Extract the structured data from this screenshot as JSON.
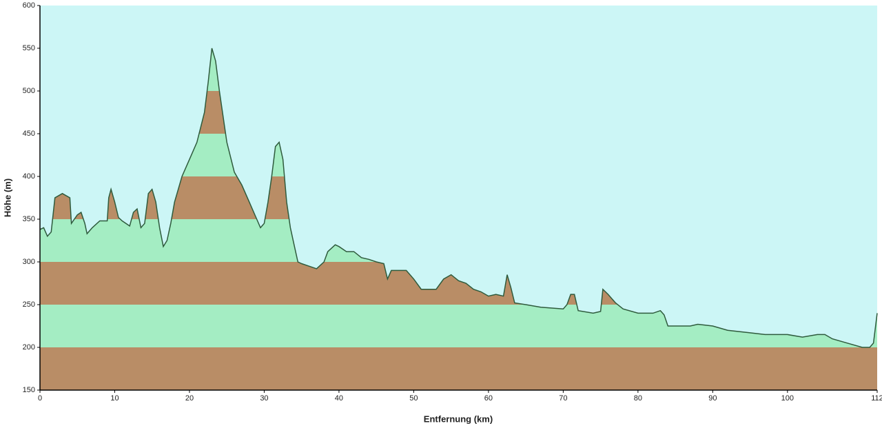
{
  "chart_data": {
    "type": "area",
    "xlabel": "Entfernung (km)",
    "ylabel": "Höhe (m)",
    "xlim": [
      0,
      112
    ],
    "ylim": [
      150,
      600
    ],
    "xticks": [
      0,
      10,
      20,
      30,
      40,
      50,
      60,
      70,
      80,
      90,
      100,
      112
    ],
    "yticks": [
      150,
      200,
      250,
      300,
      350,
      400,
      450,
      500,
      550,
      600
    ],
    "background_color": "#ccf6f6",
    "band_colors": [
      "#b98d66",
      "#a4edc3"
    ],
    "line_color": "#2e5a3c",
    "x": [
      0,
      0.5,
      1,
      1.5,
      2,
      3,
      4,
      4.2,
      5,
      5.5,
      6,
      6.3,
      7,
      8,
      9,
      9.2,
      9.5,
      10,
      10.5,
      11,
      12,
      12.5,
      13,
      13.5,
      14,
      14.5,
      15,
      15.5,
      16,
      16.5,
      17,
      17.5,
      18,
      19,
      20,
      21,
      22,
      22.5,
      23,
      23.5,
      24,
      25,
      26,
      27,
      28,
      29,
      29.5,
      30,
      30.5,
      31,
      31.5,
      32,
      32.5,
      33,
      33.5,
      34,
      34.5,
      35,
      36,
      37,
      38,
      38.5,
      39.5,
      40,
      41,
      42,
      43,
      44,
      45,
      46,
      46.5,
      47,
      49,
      50,
      51,
      53,
      54,
      55,
      56,
      57,
      58,
      59,
      60,
      61,
      62,
      62.5,
      63,
      63.5,
      65,
      67,
      70,
      70.5,
      71,
      71.5,
      72,
      74,
      75,
      75.3,
      76,
      77,
      78,
      80,
      82,
      83,
      83.5,
      84,
      85,
      87,
      88,
      90,
      92,
      95,
      97,
      100,
      102,
      104,
      105,
      106,
      108,
      110,
      111,
      111.5,
      112
    ],
    "values": [
      338,
      340,
      330,
      335,
      375,
      380,
      375,
      345,
      355,
      358,
      345,
      333,
      340,
      348,
      348,
      375,
      385,
      370,
      352,
      348,
      342,
      358,
      362,
      340,
      345,
      380,
      385,
      370,
      340,
      318,
      325,
      345,
      370,
      400,
      420,
      440,
      475,
      510,
      550,
      535,
      500,
      440,
      405,
      390,
      370,
      350,
      340,
      345,
      370,
      400,
      435,
      440,
      420,
      370,
      340,
      320,
      300,
      298,
      295,
      292,
      300,
      312,
      320,
      318,
      312,
      312,
      305,
      303,
      300,
      298,
      280,
      290,
      290,
      280,
      268,
      268,
      280,
      285,
      278,
      275,
      268,
      265,
      260,
      262,
      260,
      285,
      270,
      252,
      250,
      247,
      245,
      250,
      262,
      262,
      243,
      240,
      242,
      268,
      262,
      252,
      245,
      240,
      240,
      243,
      238,
      225,
      225,
      225,
      227,
      225,
      220,
      217,
      215,
      215,
      212,
      215,
      215,
      210,
      205,
      200,
      200,
      205,
      240
    ]
  }
}
